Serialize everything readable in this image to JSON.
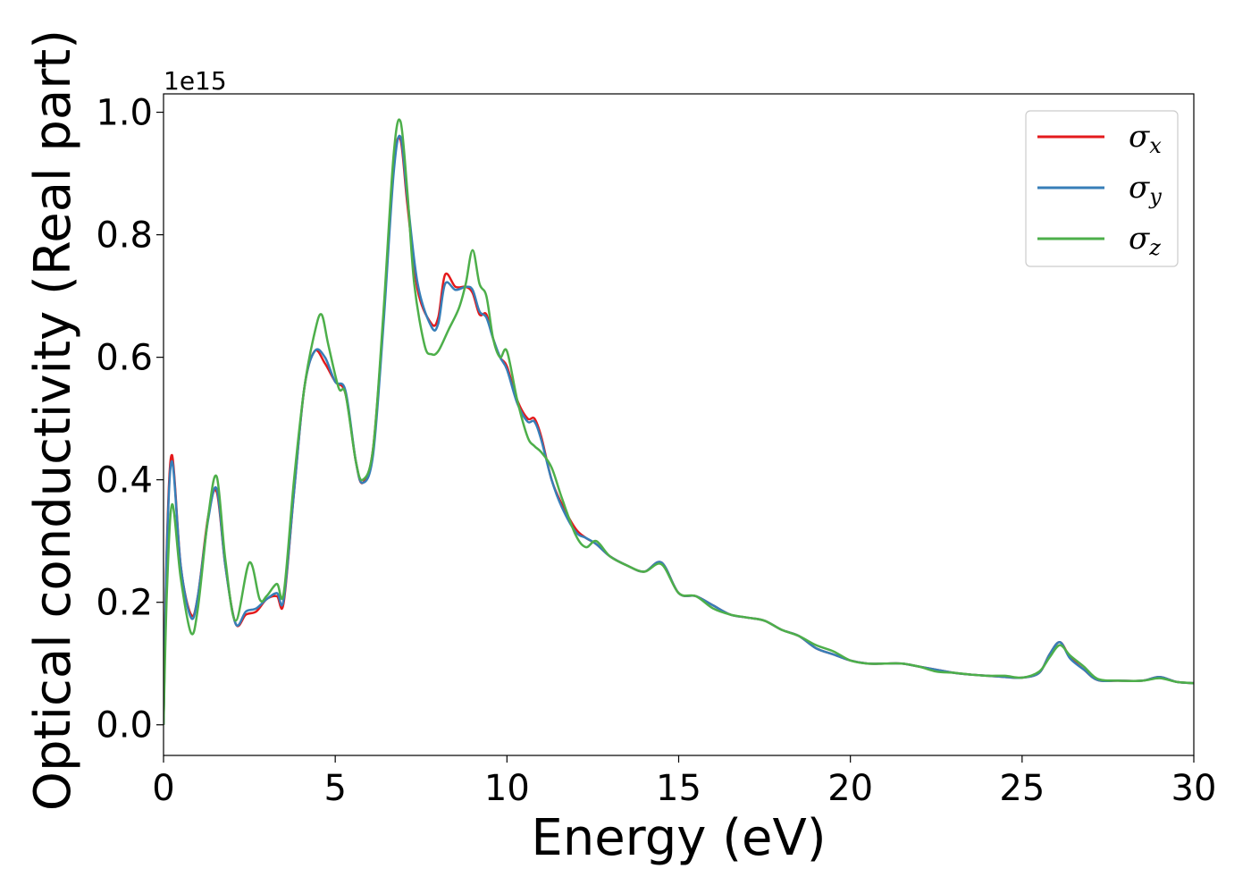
{
  "chart_data": {
    "type": "line",
    "title": "",
    "xlabel": "Energy (eV)",
    "ylabel": "Optical conductivity (Real part)",
    "y_offset_label": "1e15",
    "xlim": [
      0,
      30
    ],
    "ylim": [
      -0.05,
      1.03
    ],
    "x_ticks": [
      0,
      5,
      10,
      15,
      20,
      25,
      30
    ],
    "x_tick_labels": [
      "0",
      "5",
      "10",
      "15",
      "20",
      "25",
      "30"
    ],
    "y_ticks": [
      0.0,
      0.2,
      0.4,
      0.6,
      0.8,
      1.0
    ],
    "y_tick_labels": [
      "0.0",
      "0.2",
      "0.4",
      "0.6",
      "0.8",
      "1.0"
    ],
    "grid": false,
    "legend_position": "top-right",
    "series": [
      {
        "name": "σx",
        "legend_symbol": "σ",
        "legend_subscript": "x",
        "color": "#e41a1c",
        "x": [
          0,
          0.1,
          0.25,
          0.5,
          0.8,
          1.0,
          1.3,
          1.55,
          1.8,
          2.1,
          2.4,
          2.7,
          3.0,
          3.3,
          3.5,
          3.8,
          4.1,
          4.4,
          4.7,
          5.0,
          5.3,
          5.6,
          5.8,
          6.1,
          6.4,
          6.7,
          6.9,
          7.1,
          7.4,
          7.8,
          8.0,
          8.2,
          8.5,
          8.8,
          9.0,
          9.2,
          9.4,
          9.6,
          9.8,
          10.0,
          10.3,
          10.6,
          10.8,
          11.0,
          11.3,
          11.6,
          12.0,
          12.3,
          12.6,
          13.0,
          13.5,
          14.0,
          14.5,
          15.0,
          15.5,
          16.0,
          16.5,
          17.0,
          17.5,
          18.0,
          18.5,
          19.0,
          19.5,
          20.0,
          20.5,
          21.0,
          21.5,
          22.0,
          22.5,
          23.0,
          23.5,
          24.0,
          24.5,
          25.0,
          25.5,
          25.8,
          26.1,
          26.4,
          26.8,
          27.2,
          27.8,
          28.5,
          29.0,
          29.5,
          30.0
        ],
        "values": [
          0.0,
          0.3,
          0.44,
          0.26,
          0.18,
          0.21,
          0.34,
          0.38,
          0.26,
          0.165,
          0.18,
          0.185,
          0.205,
          0.21,
          0.2,
          0.38,
          0.55,
          0.61,
          0.59,
          0.56,
          0.54,
          0.43,
          0.395,
          0.45,
          0.66,
          0.91,
          0.955,
          0.85,
          0.71,
          0.655,
          0.665,
          0.735,
          0.715,
          0.715,
          0.705,
          0.67,
          0.67,
          0.63,
          0.6,
          0.585,
          0.53,
          0.5,
          0.5,
          0.47,
          0.4,
          0.36,
          0.32,
          0.305,
          0.295,
          0.275,
          0.26,
          0.25,
          0.265,
          0.215,
          0.21,
          0.195,
          0.18,
          0.175,
          0.17,
          0.155,
          0.145,
          0.125,
          0.115,
          0.105,
          0.1,
          0.1,
          0.1,
          0.095,
          0.09,
          0.085,
          0.082,
          0.08,
          0.078,
          0.077,
          0.085,
          0.115,
          0.135,
          0.11,
          0.09,
          0.073,
          0.072,
          0.072,
          0.078,
          0.07,
          0.068
        ]
      },
      {
        "name": "σy",
        "legend_symbol": "σ",
        "legend_subscript": "y",
        "color": "#377eb8",
        "x": [
          0,
          0.1,
          0.25,
          0.5,
          0.8,
          1.0,
          1.3,
          1.55,
          1.8,
          2.1,
          2.4,
          2.7,
          3.0,
          3.3,
          3.5,
          3.8,
          4.1,
          4.4,
          4.7,
          5.0,
          5.3,
          5.6,
          5.8,
          6.1,
          6.4,
          6.7,
          6.9,
          7.1,
          7.4,
          7.8,
          8.0,
          8.2,
          8.5,
          8.8,
          9.0,
          9.2,
          9.4,
          9.6,
          9.8,
          10.0,
          10.3,
          10.6,
          10.8,
          11.0,
          11.3,
          11.6,
          12.0,
          12.3,
          12.6,
          13.0,
          13.5,
          14.0,
          14.5,
          15.0,
          15.5,
          16.0,
          16.5,
          17.0,
          17.5,
          18.0,
          18.5,
          19.0,
          19.5,
          20.0,
          20.5,
          21.0,
          21.5,
          22.0,
          22.5,
          23.0,
          23.5,
          24.0,
          24.5,
          25.0,
          25.5,
          25.8,
          26.1,
          26.4,
          26.8,
          27.2,
          27.8,
          28.5,
          29.0,
          29.5,
          30.0
        ],
        "values": [
          0.0,
          0.29,
          0.43,
          0.26,
          0.175,
          0.21,
          0.335,
          0.385,
          0.26,
          0.165,
          0.185,
          0.19,
          0.205,
          0.215,
          0.205,
          0.38,
          0.55,
          0.61,
          0.6,
          0.56,
          0.545,
          0.43,
          0.395,
          0.44,
          0.65,
          0.9,
          0.96,
          0.86,
          0.72,
          0.65,
          0.655,
          0.72,
          0.71,
          0.715,
          0.71,
          0.675,
          0.665,
          0.63,
          0.6,
          0.58,
          0.525,
          0.495,
          0.495,
          0.465,
          0.4,
          0.355,
          0.315,
          0.305,
          0.295,
          0.275,
          0.26,
          0.25,
          0.265,
          0.215,
          0.21,
          0.195,
          0.18,
          0.175,
          0.17,
          0.155,
          0.145,
          0.125,
          0.115,
          0.105,
          0.1,
          0.1,
          0.1,
          0.095,
          0.09,
          0.085,
          0.082,
          0.08,
          0.078,
          0.077,
          0.085,
          0.115,
          0.135,
          0.108,
          0.09,
          0.073,
          0.072,
          0.072,
          0.078,
          0.07,
          0.068
        ]
      },
      {
        "name": "σz",
        "legend_symbol": "σ",
        "legend_subscript": "z",
        "color": "#4daf4a",
        "x": [
          0,
          0.1,
          0.25,
          0.5,
          0.8,
          1.0,
          1.3,
          1.55,
          1.8,
          2.1,
          2.5,
          2.8,
          3.0,
          3.3,
          3.5,
          3.8,
          4.1,
          4.4,
          4.6,
          4.8,
          5.1,
          5.3,
          5.6,
          5.8,
          6.1,
          6.4,
          6.7,
          6.9,
          7.1,
          7.3,
          7.6,
          7.8,
          8.0,
          8.3,
          8.6,
          8.8,
          9.0,
          9.2,
          9.4,
          9.6,
          9.8,
          10.0,
          10.3,
          10.6,
          10.8,
          11.0,
          11.3,
          11.6,
          12.0,
          12.3,
          12.6,
          13.0,
          13.5,
          14.0,
          14.5,
          15.0,
          15.5,
          16.0,
          16.5,
          17.0,
          17.5,
          18.0,
          18.5,
          19.0,
          19.5,
          20.0,
          20.5,
          21.0,
          21.5,
          22.0,
          22.5,
          23.0,
          23.5,
          24.0,
          24.5,
          25.0,
          25.5,
          25.8,
          26.1,
          26.4,
          26.8,
          27.2,
          27.8,
          28.5,
          29.0,
          29.5,
          30.0
        ],
        "values": [
          0.0,
          0.22,
          0.36,
          0.24,
          0.15,
          0.19,
          0.34,
          0.405,
          0.27,
          0.17,
          0.265,
          0.205,
          0.21,
          0.23,
          0.215,
          0.4,
          0.55,
          0.64,
          0.67,
          0.62,
          0.55,
          0.54,
          0.43,
          0.4,
          0.45,
          0.67,
          0.93,
          0.985,
          0.87,
          0.72,
          0.62,
          0.605,
          0.61,
          0.645,
          0.68,
          0.72,
          0.775,
          0.72,
          0.7,
          0.63,
          0.6,
          0.61,
          0.53,
          0.47,
          0.455,
          0.445,
          0.42,
          0.37,
          0.31,
          0.29,
          0.3,
          0.275,
          0.26,
          0.25,
          0.262,
          0.215,
          0.21,
          0.19,
          0.18,
          0.175,
          0.17,
          0.155,
          0.145,
          0.13,
          0.12,
          0.105,
          0.1,
          0.1,
          0.1,
          0.095,
          0.087,
          0.085,
          0.082,
          0.08,
          0.08,
          0.077,
          0.087,
          0.11,
          0.13,
          0.113,
          0.095,
          0.075,
          0.072,
          0.072,
          0.076,
          0.07,
          0.068
        ]
      }
    ]
  }
}
